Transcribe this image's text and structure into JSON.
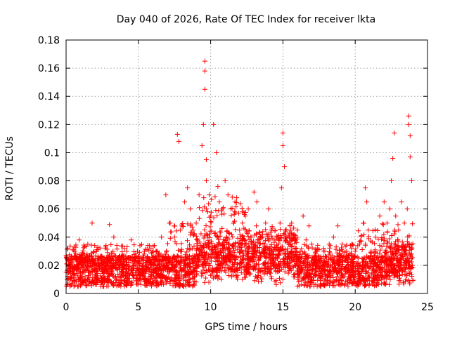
{
  "chart_data": {
    "type": "scatter",
    "title": "Day 040 of 2026, Rate Of TEC Index for receiver lkta",
    "xlabel": "GPS time / hours",
    "ylabel": "ROTI / TECUs",
    "xlim": [
      0,
      25
    ],
    "ylim": [
      0,
      0.18
    ],
    "x_ticks": [
      0,
      5,
      10,
      15,
      20,
      25
    ],
    "x_tick_labels": [
      "0",
      "5",
      "10",
      "15",
      "20",
      "25"
    ],
    "y_ticks": [
      0,
      0.02,
      0.04,
      0.06,
      0.08,
      0.1,
      0.12,
      0.14,
      0.16,
      0.18
    ],
    "y_tick_labels": [
      "0",
      "0.02",
      "0.04",
      "0.06",
      "0.08",
      "0.1",
      "0.12",
      "0.14",
      "0.16",
      "0.18"
    ],
    "grid": true,
    "marker": "+",
    "color": "#ff0000",
    "series": [
      {
        "name": "ROTI",
        "x": [
          0.1,
          0.3,
          0.6,
          0.9,
          1.2,
          1.5,
          1.8,
          2.1,
          2.4,
          2.7,
          3.0,
          3.3,
          3.6,
          3.9,
          4.2,
          4.5,
          4.8,
          5.1,
          5.4,
          5.7,
          6.0,
          6.3,
          6.6,
          6.9,
          7.2,
          7.5,
          7.7,
          7.8,
          7.9,
          8.0,
          8.2,
          8.4,
          8.6,
          8.8,
          9.0,
          9.2,
          9.4,
          9.5,
          9.6,
          9.6,
          9.6,
          9.7,
          9.7,
          9.7,
          9.8,
          9.9,
          10.0,
          10.2,
          10.4,
          10.5,
          10.5,
          10.6,
          10.8,
          11.0,
          11.2,
          11.4,
          11.6,
          11.8,
          12.0,
          12.2,
          12.4,
          12.6,
          12.8,
          13.0,
          13.2,
          13.4,
          13.6,
          13.8,
          14.0,
          14.2,
          14.4,
          14.6,
          14.8,
          14.9,
          15.0,
          15.0,
          15.1,
          15.2,
          15.4,
          15.6,
          15.8,
          16.0,
          16.2,
          16.4,
          16.6,
          16.8,
          17.0,
          17.3,
          17.6,
          17.9,
          18.2,
          18.5,
          18.8,
          19.1,
          19.4,
          19.7,
          20.0,
          20.3,
          20.6,
          20.7,
          20.8,
          20.9,
          21.1,
          21.4,
          21.7,
          22.0,
          22.2,
          22.4,
          22.5,
          22.6,
          22.7,
          22.8,
          23.0,
          23.2,
          23.4,
          23.6,
          23.7,
          23.7,
          23.8,
          23.8,
          23.9
        ],
        "y": [
          0.012,
          0.025,
          0.03,
          0.038,
          0.028,
          0.035,
          0.05,
          0.03,
          0.025,
          0.032,
          0.049,
          0.04,
          0.02,
          0.018,
          0.03,
          0.038,
          0.025,
          0.02,
          0.028,
          0.018,
          0.022,
          0.03,
          0.04,
          0.07,
          0.05,
          0.04,
          0.113,
          0.108,
          0.045,
          0.03,
          0.065,
          0.075,
          0.06,
          0.045,
          0.05,
          0.07,
          0.105,
          0.12,
          0.145,
          0.165,
          0.158,
          0.08,
          0.095,
          0.06,
          0.058,
          0.07,
          0.055,
          0.12,
          0.1,
          0.076,
          0.04,
          0.065,
          0.06,
          0.08,
          0.07,
          0.06,
          0.05,
          0.068,
          0.045,
          0.05,
          0.055,
          0.06,
          0.04,
          0.072,
          0.065,
          0.035,
          0.04,
          0.05,
          0.06,
          0.045,
          0.038,
          0.04,
          0.05,
          0.075,
          0.114,
          0.105,
          0.09,
          0.04,
          0.035,
          0.05,
          0.04,
          0.045,
          0.03,
          0.055,
          0.038,
          0.048,
          0.035,
          0.03,
          0.025,
          0.03,
          0.035,
          0.04,
          0.048,
          0.035,
          0.03,
          0.028,
          0.03,
          0.035,
          0.05,
          0.075,
          0.065,
          0.045,
          0.03,
          0.04,
          0.055,
          0.065,
          0.05,
          0.06,
          0.08,
          0.096,
          0.114,
          0.055,
          0.045,
          0.065,
          0.05,
          0.06,
          0.126,
          0.12,
          0.112,
          0.097,
          0.08
        ]
      }
    ],
    "baseline_noise": {
      "description": "dense points 0.005–0.03 throughout 0–24 h"
    }
  }
}
